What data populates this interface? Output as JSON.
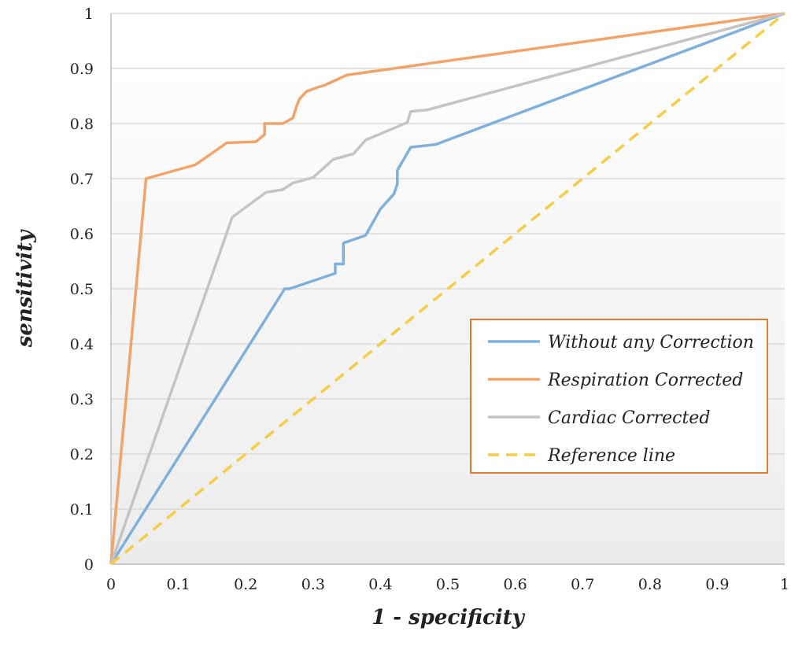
{
  "chart_data": {
    "type": "line",
    "title": "",
    "xlabel": "1 - specificity",
    "ylabel": "sensitivity",
    "xlim": [
      0,
      1
    ],
    "ylim": [
      0,
      1
    ],
    "x_ticks": [
      "0",
      "0.1",
      "0.2",
      "0.3",
      "0.4",
      "0.5",
      "0.6",
      "0.7",
      "0.8",
      "0.9",
      "1"
    ],
    "y_ticks": [
      "0",
      "0.1",
      "0.2",
      "0.3",
      "0.4",
      "0.5",
      "0.6",
      "0.7",
      "0.8",
      "0.9",
      "1"
    ],
    "grid": "horizontal",
    "legend_position": "lower-right",
    "series": [
      {
        "name": "Without any Correction",
        "color": "#7fb0dc",
        "dash": "solid",
        "x": [
          0,
          0.258,
          0.265,
          0.333,
          0.333,
          0.345,
          0.345,
          0.378,
          0.4,
          0.42,
          0.425,
          0.425,
          0.445,
          0.482,
          1
        ],
        "y": [
          0,
          0.5,
          0.5,
          0.528,
          0.545,
          0.545,
          0.583,
          0.597,
          0.645,
          0.672,
          0.69,
          0.715,
          0.757,
          0.762,
          1
        ]
      },
      {
        "name": "Respiration Corrected",
        "color": "#f0a46a",
        "dash": "solid",
        "x": [
          0,
          0.052,
          0.125,
          0.172,
          0.215,
          0.228,
          0.228,
          0.255,
          0.27,
          0.275,
          0.28,
          0.29,
          0.305,
          0.318,
          0.35,
          1
        ],
        "y": [
          0,
          0.7,
          0.725,
          0.765,
          0.767,
          0.78,
          0.8,
          0.8,
          0.81,
          0.83,
          0.845,
          0.858,
          0.865,
          0.87,
          0.888,
          1
        ]
      },
      {
        "name": "Cardiac Corrected",
        "color": "#c4c4c4",
        "dash": "solid",
        "x": [
          0,
          0.18,
          0.23,
          0.255,
          0.27,
          0.3,
          0.33,
          0.36,
          0.378,
          0.44,
          0.445,
          0.47,
          1
        ],
        "y": [
          0,
          0.63,
          0.675,
          0.68,
          0.692,
          0.702,
          0.735,
          0.745,
          0.77,
          0.802,
          0.822,
          0.825,
          1
        ]
      },
      {
        "name": "Reference line",
        "color": "#f5cc45",
        "dash": "dashed",
        "x": [
          0,
          1
        ],
        "y": [
          0,
          1
        ]
      }
    ]
  }
}
